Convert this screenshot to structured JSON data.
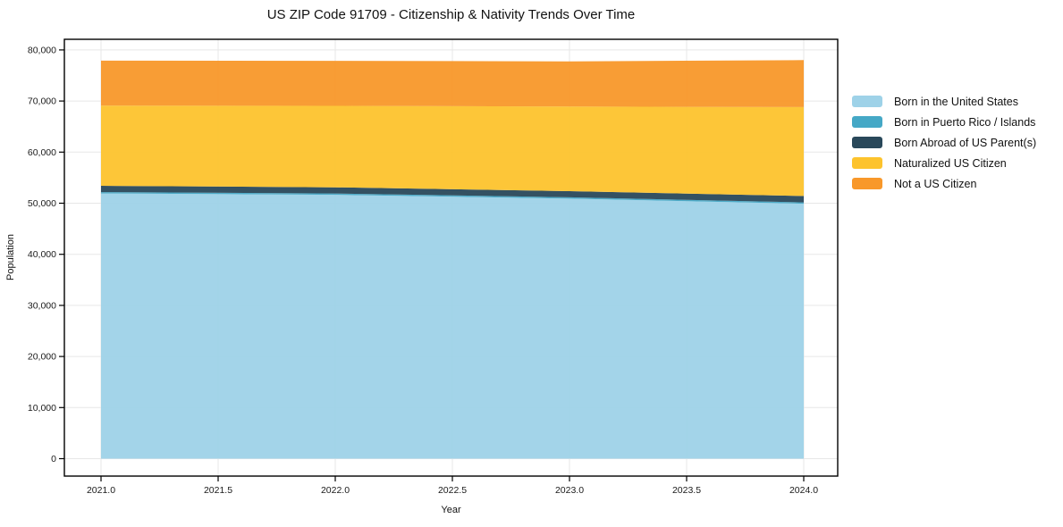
{
  "page": {
    "background": "#ffffff"
  },
  "chart_data": {
    "type": "area",
    "stacked": true,
    "title": "US ZIP Code 91709 - Citizenship & Nativity Trends Over Time",
    "xlabel": "Year",
    "ylabel": "Population",
    "x": [
      2021,
      2022,
      2023,
      2024
    ],
    "series": [
      {
        "name": "Born in the United States",
        "color": "#9ed2e8",
        "values": [
          51900,
          51650,
          50900,
          49900
        ]
      },
      {
        "name": "Born in Puerto Rico / Islands",
        "color": "#45a8c6",
        "values": [
          260,
          260,
          260,
          260
        ]
      },
      {
        "name": "Born Abroad of US Parent(s)",
        "color": "#29485a",
        "values": [
          1250,
          1200,
          1200,
          1250
        ]
      },
      {
        "name": "Naturalized US Citizen",
        "color": "#fdc32d",
        "values": [
          15700,
          15950,
          16550,
          17400
        ]
      },
      {
        "name": "Not a US Citizen",
        "color": "#f8982a",
        "values": [
          8800,
          8800,
          8850,
          9200
        ]
      }
    ],
    "ylim": [
      0,
      80000
    ],
    "xticks": {
      "values": [
        2021.0,
        2021.5,
        2022.0,
        2022.5,
        2023.0,
        2023.5,
        2024.0
      ],
      "labels": [
        "2021.0",
        "2021.5",
        "2022.0",
        "2022.5",
        "2023.0",
        "2023.5",
        "2024.0"
      ]
    },
    "yticks": {
      "values": [
        0,
        10000,
        20000,
        30000,
        40000,
        50000,
        60000,
        70000,
        80000
      ],
      "labels": [
        "0",
        "10,000",
        "20,000",
        "30,000",
        "40,000",
        "50,000",
        "60,000",
        "70,000",
        "80,000"
      ]
    },
    "grid": true,
    "legend_position": "right",
    "axis_color": "#000000",
    "grid_color": "#e7e7e7",
    "text_color": "#1a1a1a"
  }
}
